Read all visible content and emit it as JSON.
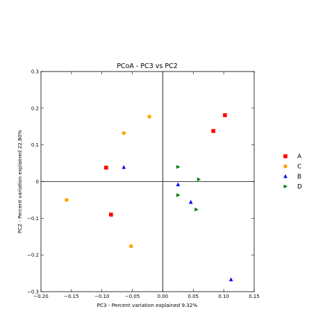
{
  "chart_data": {
    "type": "scatter",
    "title": "PCoA - PC3 vs PC2",
    "xlabel": "PC3 - Percent variation explained 9.32%",
    "ylabel": "PC2 - Percent variation explained 22.80%",
    "xlim": [
      -0.2,
      0.15
    ],
    "ylim": [
      -0.3,
      0.3
    ],
    "x_ticks": [
      "−0.20",
      "−0.15",
      "−0.10",
      "−0.05",
      "0.00",
      "0.05",
      "0.10",
      "0.15"
    ],
    "y_ticks": [
      "0.3",
      "0.2",
      "0.1",
      "0",
      "−0.1",
      "−0.2",
      "−0.3"
    ],
    "x_tick_values": [
      -0.2,
      -0.15,
      -0.1,
      -0.05,
      0.0,
      0.05,
      0.1,
      0.15
    ],
    "y_tick_values": [
      0.3,
      0.2,
      0.1,
      0.0,
      -0.1,
      -0.2,
      -0.3
    ],
    "zero_lines": true,
    "grid": false,
    "legend_position": "right",
    "series": [
      {
        "name": "A",
        "marker": "square",
        "color": "#ff0000",
        "points": [
          {
            "x": -0.093,
            "y": 0.038
          },
          {
            "x": -0.085,
            "y": -0.09
          },
          {
            "x": 0.083,
            "y": 0.138
          },
          {
            "x": 0.102,
            "y": 0.181
          }
        ]
      },
      {
        "name": "C",
        "marker": "circle",
        "color": "#ffa500",
        "points": [
          {
            "x": -0.158,
            "y": -0.05
          },
          {
            "x": -0.064,
            "y": 0.132
          },
          {
            "x": -0.022,
            "y": 0.177
          },
          {
            "x": -0.052,
            "y": -0.176
          }
        ]
      },
      {
        "name": "B",
        "marker": "triangle-up",
        "color": "#0000ff",
        "points": [
          {
            "x": -0.064,
            "y": 0.039
          },
          {
            "x": 0.025,
            "y": -0.008
          },
          {
            "x": 0.046,
            "y": -0.056
          },
          {
            "x": 0.112,
            "y": -0.267
          }
        ]
      },
      {
        "name": "D",
        "marker": "triangle-right",
        "color": "#008000",
        "points": [
          {
            "x": 0.025,
            "y": 0.04
          },
          {
            "x": 0.059,
            "y": 0.006
          },
          {
            "x": 0.025,
            "y": -0.037
          },
          {
            "x": 0.055,
            "y": -0.076
          }
        ]
      }
    ]
  }
}
